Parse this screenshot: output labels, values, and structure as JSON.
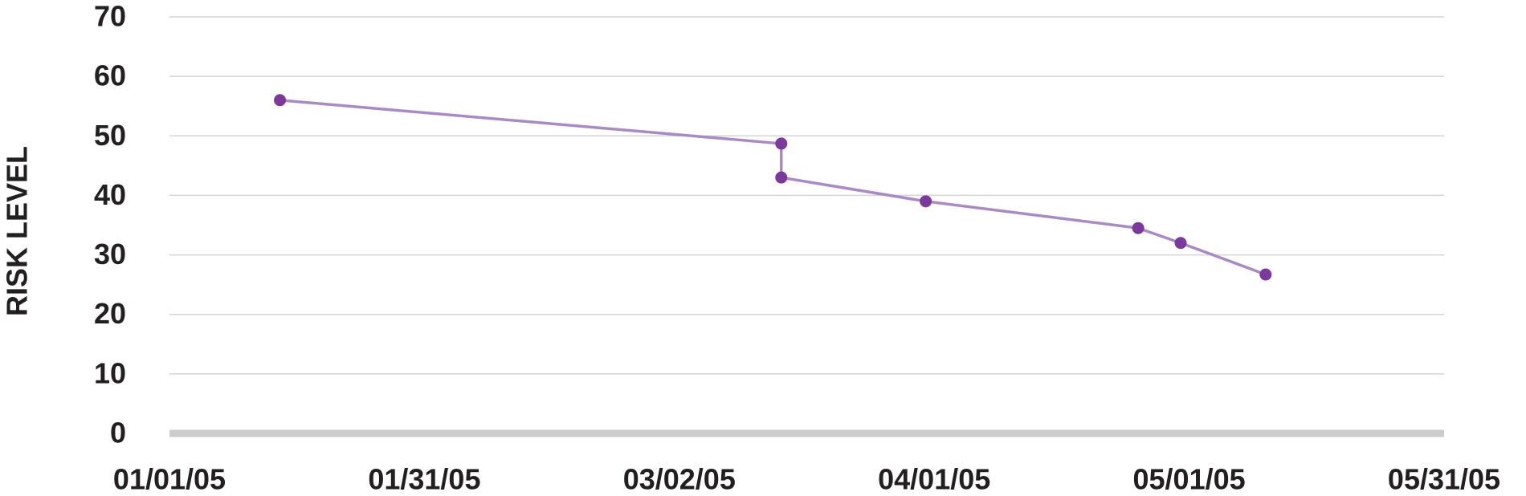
{
  "chart_data": {
    "type": "line",
    "y_label": "RISK LEVEL",
    "x": [
      "01/14/05",
      "03/14/05",
      "03/14/05",
      "03/31/05",
      "04/25/05",
      "04/30/05",
      "05/10/05"
    ],
    "series": [
      {
        "color": "#a98bc4",
        "marker_color": "#7b3a9b",
        "values": [
          56,
          48.7,
          43,
          39,
          34.5,
          32,
          26.7
        ]
      }
    ],
    "xlim": [
      "01/01/05",
      "05/31/05"
    ],
    "xticks": [
      "01/01/05",
      "01/31/05",
      "03/02/05",
      "04/01/05",
      "05/01/05",
      "05/31/05"
    ],
    "ylim": [
      0,
      70
    ],
    "yticks": [
      0,
      10,
      20,
      30,
      40,
      50,
      60,
      70
    ],
    "grid": true
  }
}
